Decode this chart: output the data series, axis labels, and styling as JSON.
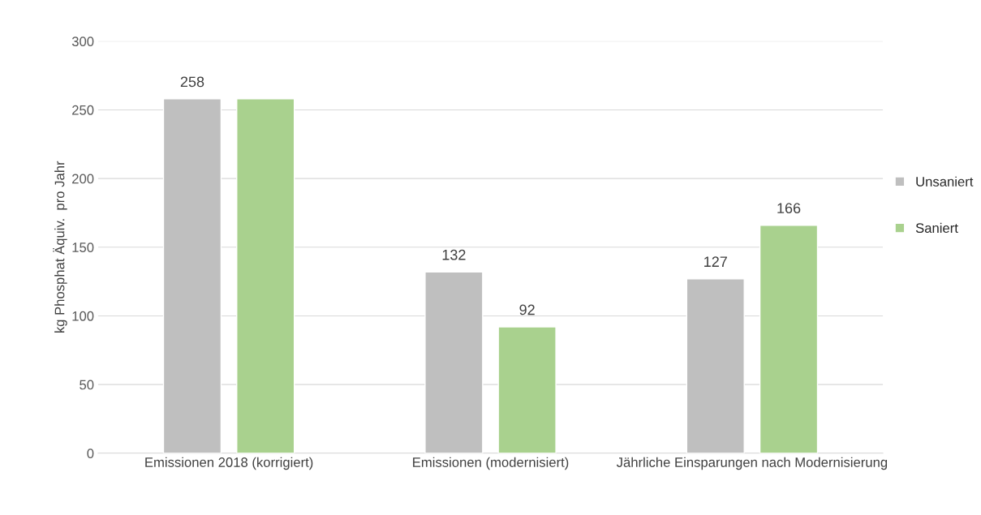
{
  "chart_data": {
    "type": "bar",
    "ylabel": "kg Phosphat Äquiv.  pro Jahr",
    "categories": [
      "Emissionen 2018 (korrigiert)",
      "Emissionen (modernisiert)",
      "Jährliche Einsparungen nach Modernisierung"
    ],
    "series": [
      {
        "name": "Unsaniert",
        "color": "#bfbfbf",
        "values": [
          258,
          132,
          127
        ],
        "value_labels": [
          "258",
          "132",
          "127"
        ]
      },
      {
        "name": "Saniert",
        "color": "#a9d18e",
        "values": [
          258,
          92,
          166
        ],
        "value_labels": [
          null,
          "92",
          "166"
        ]
      }
    ],
    "ylim": [
      0,
      300
    ],
    "yticks": [
      0,
      50,
      100,
      150,
      200,
      250,
      300
    ],
    "grid": "y",
    "legend": "right"
  }
}
